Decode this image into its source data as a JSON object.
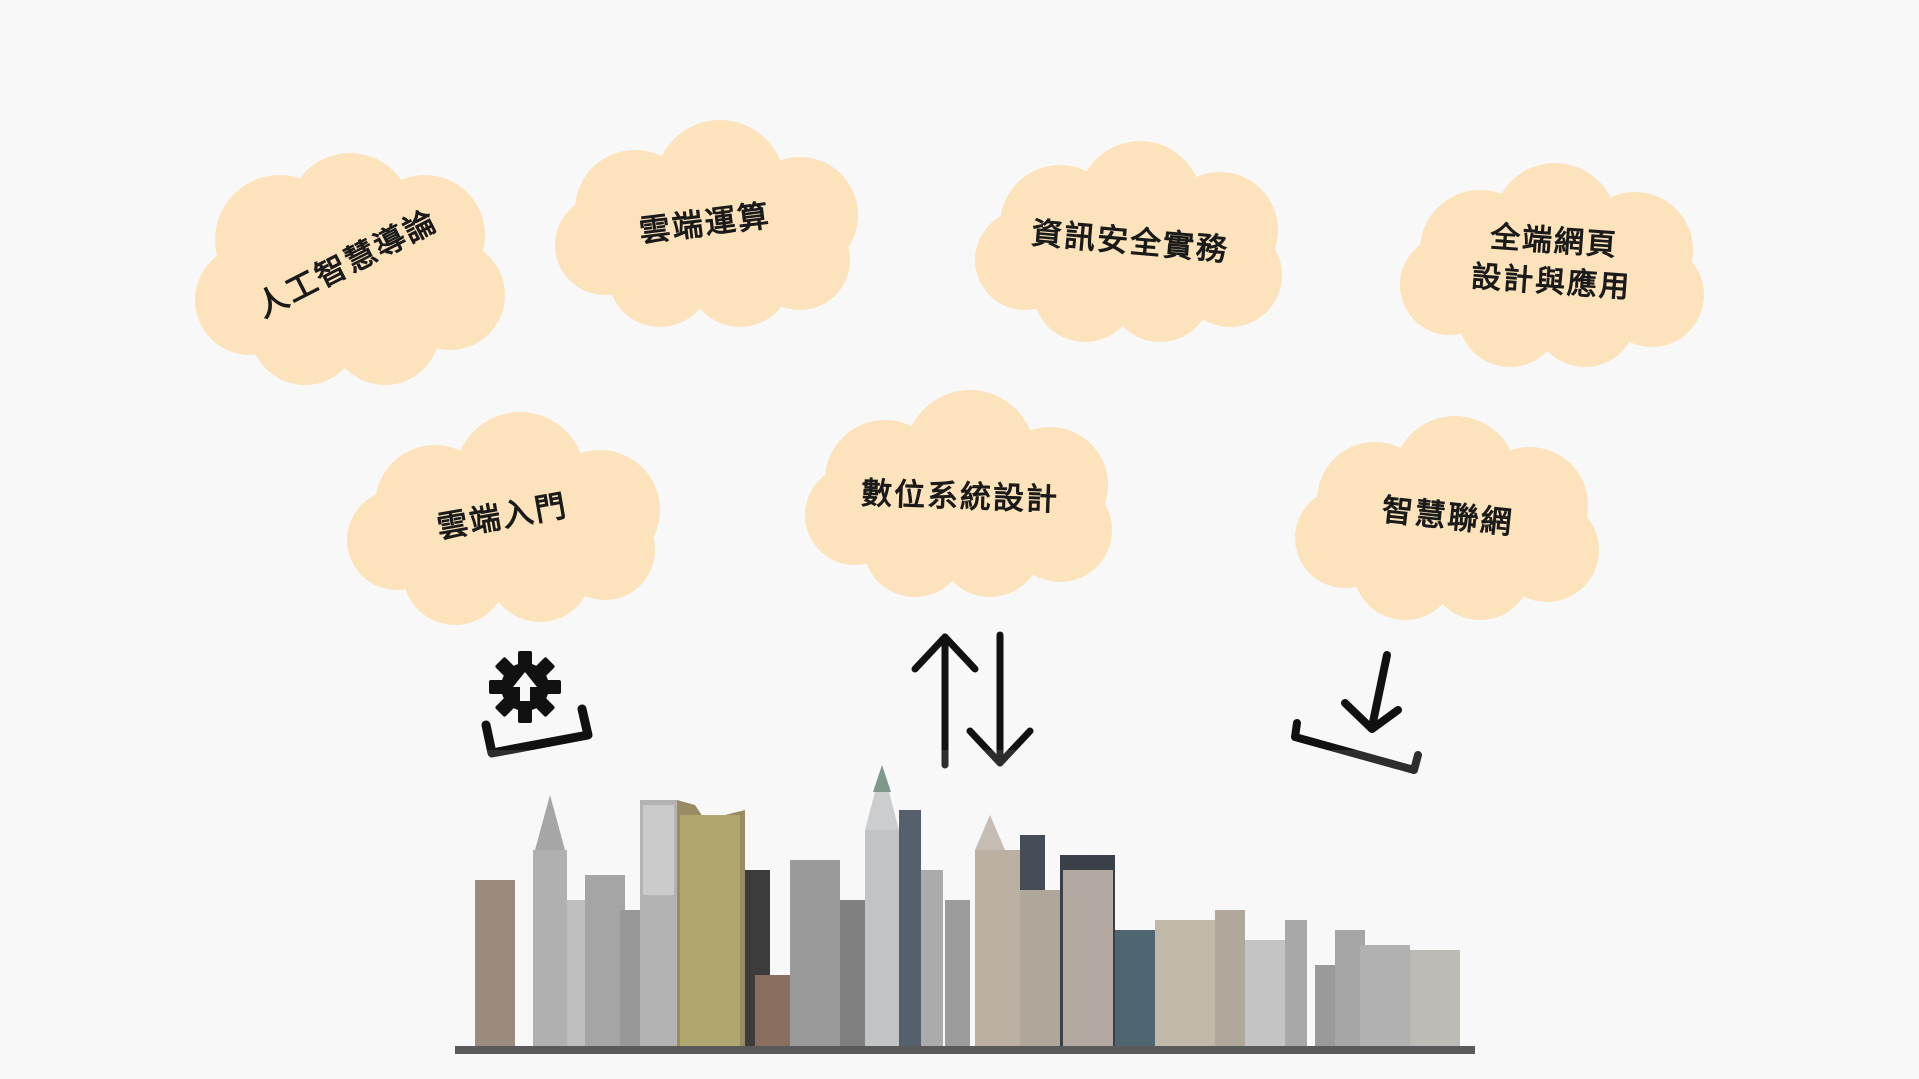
{
  "colors": {
    "background": "#f8f8f8",
    "cloud_fill": "#fce3bb",
    "icon_stroke": "#111111"
  },
  "clouds": [
    {
      "id": "ai",
      "label": "人工智慧導論"
    },
    {
      "id": "cloudcomp",
      "label": "雲端運算"
    },
    {
      "id": "infosec",
      "label": "資訊安全實務"
    },
    {
      "id": "fullstack",
      "label": "全端網頁\n設計與應用"
    },
    {
      "id": "cloudintro",
      "label": "雲端入門"
    },
    {
      "id": "digital",
      "label": "數位系統設計"
    },
    {
      "id": "iot",
      "label": "智慧聯網"
    }
  ],
  "icons": [
    {
      "name": "upload-settings-icon"
    },
    {
      "name": "sync-arrows-icon"
    },
    {
      "name": "download-icon"
    }
  ],
  "image": {
    "name": "city-skyline"
  }
}
